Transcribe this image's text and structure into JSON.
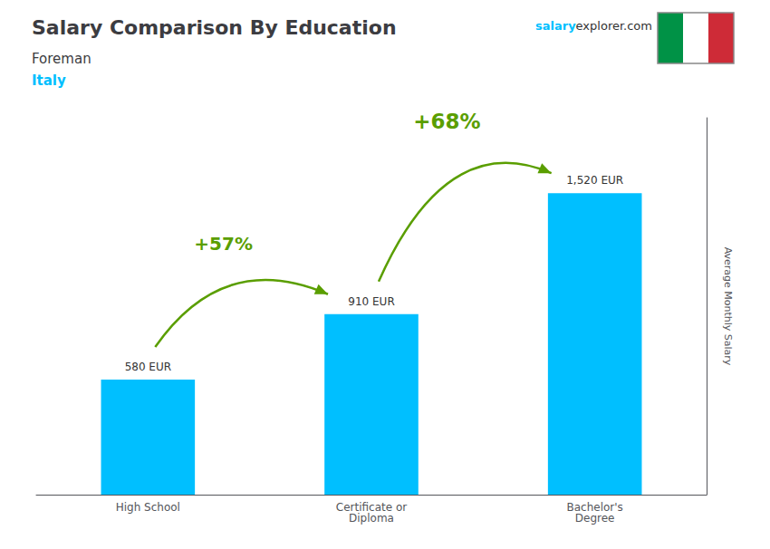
{
  "chart_data": {
    "type": "bar",
    "title": "Salary Comparison By Education",
    "subtitle": [
      "Foreman",
      "Italy"
    ],
    "categories": [
      "High School",
      "Certificate or\nDiploma",
      "Bachelor's\nDegree"
    ],
    "values": [
      580,
      910,
      1520
    ],
    "value_labels": [
      "580 EUR",
      "910 EUR",
      "1,520 EUR"
    ],
    "data_labels": true,
    "color": "#00BFFF",
    "ylabel": "Average Monthly Salary",
    "ylim": [
      0,
      1900
    ],
    "tick_labels": "x",
    "grid": false,
    "annotations": [
      "+57%",
      "+68%",
      "salary",
      "explorer.com"
    ]
  }
}
